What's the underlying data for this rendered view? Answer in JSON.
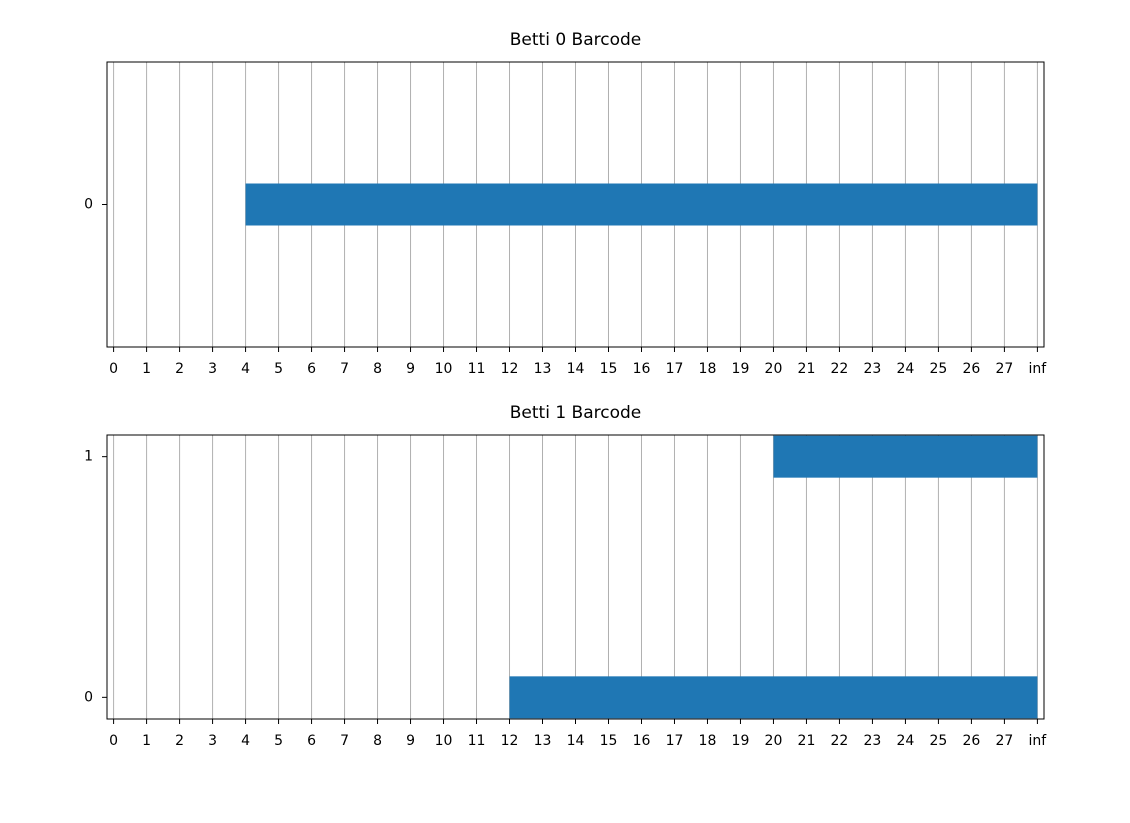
{
  "chart_data": [
    {
      "type": "barh",
      "title": "Betti 0 Barcode",
      "color": "#1f77b4",
      "grid": "x",
      "bars": [
        {
          "y": 0,
          "start": 4,
          "end": 28
        }
      ],
      "xlim": [
        -0.2,
        28.2
      ],
      "ylim": [
        -0.61,
        0.61
      ],
      "xticks": [
        0,
        1,
        2,
        3,
        4,
        5,
        6,
        7,
        8,
        9,
        10,
        11,
        12,
        13,
        14,
        15,
        16,
        17,
        18,
        19,
        20,
        21,
        22,
        23,
        24,
        25,
        26,
        27,
        {
          "value": 28,
          "label": "inf"
        }
      ],
      "yticks": [
        0
      ]
    },
    {
      "type": "barh",
      "title": "Betti 1 Barcode",
      "color": "#1f77b4",
      "grid": "x",
      "bars": [
        {
          "y": 0,
          "start": 12,
          "end": 28
        },
        {
          "y": 1,
          "start": 20,
          "end": 28
        }
      ],
      "xlim": [
        -0.2,
        28.2
      ],
      "ylim": [
        -0.09,
        1.09
      ],
      "xticks": [
        0,
        1,
        2,
        3,
        4,
        5,
        6,
        7,
        8,
        9,
        10,
        11,
        12,
        13,
        14,
        15,
        16,
        17,
        18,
        19,
        20,
        21,
        22,
        23,
        24,
        25,
        26,
        27,
        {
          "value": 28,
          "label": "inf"
        }
      ],
      "yticks": [
        0,
        1
      ]
    }
  ]
}
